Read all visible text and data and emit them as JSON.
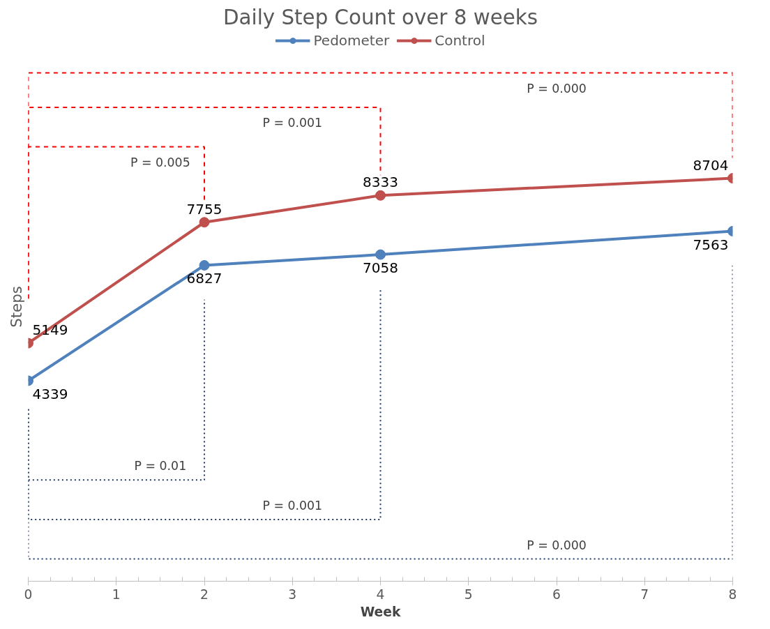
{
  "chart_data": {
    "type": "line",
    "title": "Daily Step Count over 8 weeks",
    "xlabel": "Week",
    "ylabel": "Steps",
    "x": [
      0,
      2,
      4,
      8
    ],
    "series": [
      {
        "name": "Pedometer",
        "color": "#4f81bd",
        "values": [
          4339,
          6827,
          7058,
          7563
        ]
      },
      {
        "name": "Control",
        "color": "#c0504d",
        "values": [
          5149,
          7755,
          8333,
          8704
        ]
      }
    ],
    "xlim": [
      0,
      8
    ],
    "xticks": [
      0,
      1,
      2,
      3,
      4,
      5,
      6,
      7,
      8
    ],
    "tick_labels": "x",
    "marker": "circle",
    "line_style": "solid",
    "data_labels": true,
    "legend": "top",
    "grid": false,
    "annotations": [
      "P = 0.005",
      "P = 0.001",
      "P = 0.000",
      "P = 0.01",
      "P = 0.001",
      "P = 0.000"
    ]
  }
}
